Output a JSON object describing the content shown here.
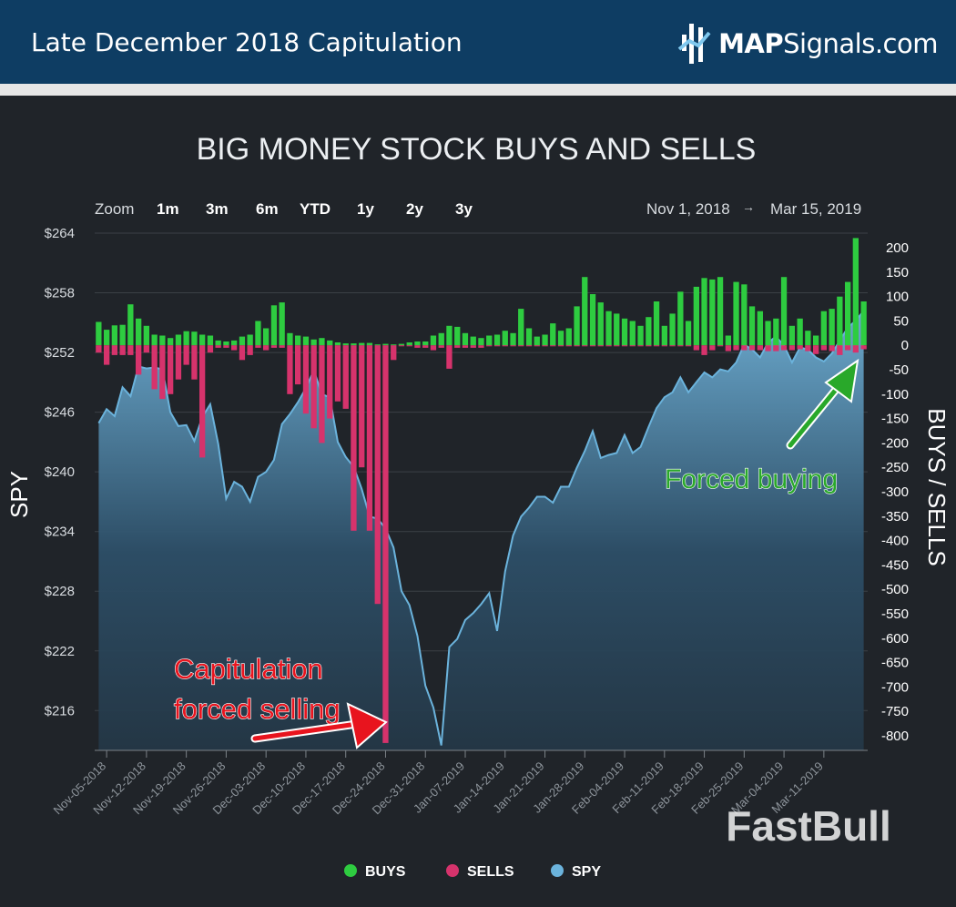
{
  "header": {
    "title": "Late December 2018 Capitulation",
    "brand_bold": "MAP",
    "brand_rest": "Signals.com"
  },
  "range_selector": {
    "zoom_label": "Zoom",
    "buttons": [
      "1m",
      "3m",
      "6m",
      "YTD",
      "1y",
      "2y",
      "3y"
    ],
    "from": "Nov 1, 2018",
    "arrow": "→",
    "to": "Mar 15, 2019"
  },
  "watermark": "FastBull",
  "colors": {
    "buys": "#2ecc40",
    "sells": "#d6336c",
    "spy": "#6bb3dc",
    "annotation_red": "#e8141e",
    "annotation_green": "#29a82a"
  },
  "chart_data": {
    "type": "bar",
    "title": "BIG MONEY STOCK BUYS AND SELLS",
    "left_axis": {
      "label": "SPY",
      "ticks": [
        "$264",
        "$258",
        "$252",
        "$246",
        "$240",
        "$234",
        "$228",
        "$222",
        "$216"
      ],
      "range": [
        212,
        264
      ]
    },
    "right_axis": {
      "label": "BUYS / SELLS",
      "ticks": [
        "200",
        "150",
        "100",
        "50",
        "0",
        "-50",
        "-100",
        "-150",
        "-200",
        "-250",
        "-300",
        "-350",
        "-400",
        "-450",
        "-500",
        "-550",
        "-600",
        "-650",
        "-700",
        "-750",
        "-800"
      ],
      "range": [
        -830,
        230
      ]
    },
    "x_tick_labels": [
      "Nov-05-2018",
      "Nov-12-2018",
      "Nov-19-2018",
      "Nov-26-2018",
      "Dec-03-2018",
      "Dec-10-2018",
      "Dec-17-2018",
      "Dec-24-2018",
      "Dec-31-2018",
      "Jan-07-2019",
      "Jan-14-2019",
      "Jan-21-2019",
      "Jan-28-2019",
      "Feb-04-2019",
      "Feb-11-2019",
      "Feb-18-2019",
      "Feb-25-2019",
      "Mar-04-2019",
      "Mar-11-2019"
    ],
    "legend": [
      "BUYS",
      "SELLS",
      "SPY"
    ],
    "legend_position": "bottom",
    "series": [
      {
        "name": "BUYS",
        "values": [
          48,
          32,
          41,
          42,
          84,
          55,
          40,
          22,
          20,
          15,
          22,
          29,
          28,
          22,
          20,
          10,
          8,
          10,
          18,
          22,
          50,
          35,
          82,
          88,
          25,
          20,
          18,
          12,
          15,
          10,
          6,
          4,
          4,
          5,
          5,
          2,
          3,
          2,
          3,
          6,
          8,
          8,
          20,
          25,
          40,
          38,
          25,
          18,
          15,
          20,
          22,
          30,
          25,
          75,
          35,
          18,
          22,
          45,
          30,
          35,
          80,
          140,
          105,
          88,
          70,
          65,
          55,
          50,
          40,
          58,
          90,
          40,
          65,
          110,
          50,
          120,
          138,
          135,
          140,
          20,
          130,
          125,
          80,
          70,
          50,
          55,
          140,
          40,
          55,
          30,
          20,
          70,
          75,
          100,
          130,
          220,
          90
        ]
      },
      {
        "name": "SELLS",
        "values": [
          -15,
          -40,
          -20,
          -20,
          -20,
          -60,
          -15,
          -90,
          -110,
          -100,
          -70,
          -40,
          -70,
          -230,
          -15,
          -5,
          -5,
          -10,
          -30,
          -20,
          -5,
          -10,
          -5,
          -5,
          -100,
          -80,
          -140,
          -170,
          -200,
          -150,
          -115,
          -130,
          -380,
          -250,
          -380,
          -530,
          -815,
          -30,
          -2,
          -2,
          -5,
          -5,
          -10,
          -5,
          -48,
          -5,
          -5,
          -5,
          -5,
          -2,
          -2,
          -2,
          -2,
          -2,
          -2,
          -2,
          -2,
          -2,
          -2,
          -2,
          -2,
          -2,
          -2,
          -2,
          -2,
          -2,
          -2,
          -2,
          -2,
          -2,
          -2,
          -2,
          -2,
          -2,
          -2,
          -10,
          -20,
          -10,
          -2,
          -12,
          -10,
          -10,
          -10,
          -10,
          -12,
          -12,
          -10,
          -10,
          -8,
          -12,
          -18,
          -10,
          -12,
          -20,
          -10,
          -15,
          -8
        ]
      },
      {
        "name": "SPY",
        "values": [
          244.9,
          246.3,
          245.6,
          248.5,
          247.6,
          250.6,
          250.4,
          250.5,
          250.3,
          246,
          244.6,
          244.7,
          243.1,
          245.5,
          246.8,
          242.8,
          237.3,
          239,
          238.5,
          237,
          239.5,
          240,
          241.2,
          244.8,
          245.8,
          247,
          248.4,
          250.2,
          247.8,
          247.5,
          243,
          241.5,
          240.5,
          238.3,
          235.5,
          235.3,
          234.3,
          232.4,
          228,
          226.6,
          223.5,
          218.5,
          216.3,
          212.5,
          222.4,
          223.2,
          225.1,
          225.8,
          226.7,
          227.8,
          224,
          230,
          233.6,
          235.5,
          236.4,
          237.5,
          237.5,
          236.9,
          238.5,
          238.5,
          240.4,
          242.1,
          244.1,
          241.4,
          241.7,
          241.9,
          243.7,
          241.9,
          242.5,
          244.5,
          246.4,
          247.5,
          248,
          249.5,
          248,
          249,
          250,
          249.5,
          250.3,
          250.1,
          251,
          252.8,
          252.3,
          251.5,
          253,
          253.6,
          252.7,
          251,
          252.5,
          252.3,
          251.5,
          251.1,
          251.9,
          253.2,
          254.5,
          255.2,
          256.2
        ]
      }
    ],
    "annotations": [
      {
        "text_line1": "Capitulation",
        "text_line2": "forced selling"
      },
      {
        "text": "Forced buying"
      }
    ]
  }
}
